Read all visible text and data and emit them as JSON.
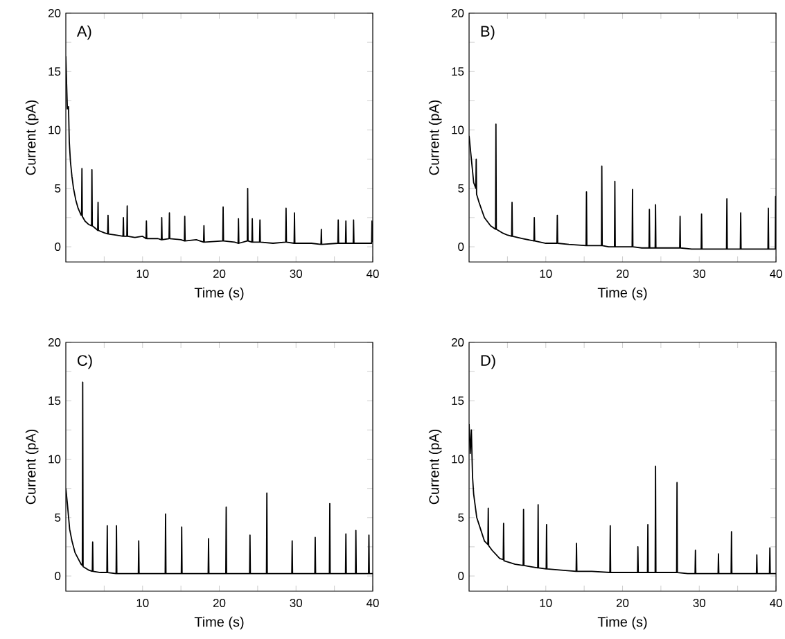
{
  "chart_data": [
    {
      "type": "line",
      "annotations": [
        "A)"
      ],
      "xlabel": "Time (s)",
      "ylabel": "Current (pA)",
      "color": "#000000",
      "xlim": [
        0,
        40
      ],
      "ylim": [
        -1.3,
        20
      ],
      "xticks": [
        {
          "value": 5,
          "label": null
        },
        10,
        {
          "value": 15,
          "label": null
        },
        20,
        {
          "value": 25,
          "label": null
        },
        30,
        {
          "value": 35,
          "label": null
        },
        40
      ],
      "yticks": [
        0,
        {
          "value": 2.5,
          "label": null
        },
        5,
        {
          "value": 7.5,
          "label": null
        },
        10,
        {
          "value": 12.5,
          "label": null
        },
        15,
        {
          "value": 17.5,
          "label": null
        },
        20
      ],
      "x": [
        0,
        0.1,
        0.2,
        0.35,
        0.45,
        0.6,
        0.8,
        1.0,
        1.3,
        1.6,
        2.0,
        2.05,
        2.1,
        2.15,
        2.5,
        3.0,
        3.35,
        3.4,
        3.45,
        4.0,
        4.15,
        4.2,
        4.25,
        5,
        5.45,
        5.5,
        5.55,
        6.5,
        7.45,
        7.5,
        7.55,
        7.95,
        8.0,
        8.05,
        9,
        10,
        10.45,
        10.5,
        10.55,
        12,
        12.45,
        12.5,
        12.55,
        13.45,
        13.5,
        13.55,
        15,
        15.45,
        15.5,
        15.55,
        17,
        17.95,
        18,
        18.05,
        20.45,
        20.5,
        20.55,
        22,
        22.45,
        22.5,
        22.55,
        23.65,
        23.7,
        23.75,
        24.25,
        24.3,
        24.35,
        25.25,
        25.3,
        25.35,
        27,
        28.65,
        28.7,
        28.75,
        29.75,
        29.8,
        29.85,
        32,
        33.25,
        33.3,
        33.35,
        35.45,
        35.5,
        35.55,
        36.45,
        36.5,
        36.55,
        37.45,
        37.5,
        37.55,
        39,
        39.85,
        39.9,
        40
      ],
      "values": [
        16.3,
        14,
        11.8,
        12,
        9,
        7.3,
        6,
        5,
        4,
        3.3,
        2.7,
        2.7,
        6.7,
        2.6,
        2.2,
        1.9,
        1.8,
        6.6,
        1.8,
        1.5,
        1.4,
        3.8,
        1.4,
        1.2,
        1.1,
        2.7,
        1.1,
        1.0,
        0.9,
        2.5,
        0.9,
        0.9,
        3.5,
        0.9,
        0.8,
        0.9,
        0.7,
        2.2,
        0.7,
        0.7,
        0.6,
        2.5,
        0.6,
        0.7,
        2.9,
        0.7,
        0.6,
        0.5,
        2.6,
        0.5,
        0.6,
        0.4,
        1.8,
        0.4,
        0.5,
        3.4,
        0.5,
        0.4,
        0.3,
        2.4,
        0.3,
        0.5,
        5.0,
        0.5,
        0.4,
        2.4,
        0.4,
        0.4,
        2.3,
        0.4,
        0.3,
        0.4,
        3.3,
        0.4,
        0.3,
        2.9,
        0.3,
        0.3,
        0.2,
        1.5,
        0.2,
        0.3,
        2.3,
        0.3,
        0.3,
        2.2,
        0.3,
        0.3,
        2.3,
        0.3,
        0.3,
        0.3,
        2.2,
        0.4
      ]
    },
    {
      "type": "line",
      "annotations": [
        "B)"
      ],
      "xlabel": "Time (s)",
      "ylabel": "Current (pA)",
      "color": "#000000",
      "xlim": [
        0,
        40
      ],
      "ylim": [
        -1.3,
        20
      ],
      "xticks": [
        {
          "value": 5,
          "label": null
        },
        10,
        {
          "value": 15,
          "label": null
        },
        20,
        {
          "value": 25,
          "label": null
        },
        30,
        {
          "value": 35,
          "label": null
        },
        40
      ],
      "yticks": [
        0,
        {
          "value": 2.5,
          "label": null
        },
        5,
        {
          "value": 7.5,
          "label": null
        },
        10,
        {
          "value": 12.5,
          "label": null
        },
        15,
        {
          "value": 17.5,
          "label": null
        },
        20
      ],
      "x": [
        0,
        0.3,
        0.6,
        0.88,
        0.93,
        0.98,
        1.3,
        2.0,
        2.8,
        3.45,
        3.5,
        3.55,
        4.3,
        5.0,
        5.55,
        5.6,
        5.65,
        7,
        8.45,
        8.5,
        8.55,
        10,
        11.45,
        11.5,
        11.55,
        13,
        15.25,
        15.3,
        15.35,
        16.5,
        17.25,
        17.3,
        17.35,
        18.2,
        18.95,
        19.0,
        19.05,
        20,
        21.25,
        21.3,
        21.35,
        22.5,
        23.45,
        23.5,
        23.55,
        24.25,
        24.3,
        24.35,
        26,
        27.45,
        27.5,
        27.55,
        29,
        30.25,
        30.3,
        30.35,
        32,
        33.55,
        33.6,
        33.65,
        34.5,
        35.35,
        35.4,
        35.45,
        37,
        38.95,
        39.0,
        39.05,
        39.9,
        39.95,
        40
      ],
      "values": [
        9.5,
        7.5,
        5.5,
        5.0,
        7.5,
        4.5,
        3.8,
        2.5,
        1.8,
        1.5,
        10.5,
        1.5,
        1.2,
        1.0,
        0.9,
        3.8,
        0.9,
        0.7,
        0.5,
        2.5,
        0.5,
        0.3,
        0.3,
        2.7,
        0.3,
        0.2,
        0.1,
        4.7,
        0.1,
        0.1,
        0.1,
        6.9,
        0.1,
        0.0,
        0.0,
        5.6,
        0.0,
        0.0,
        0.0,
        4.9,
        0.0,
        -0.1,
        -0.1,
        3.2,
        -0.1,
        -0.1,
        3.6,
        -0.1,
        -0.1,
        -0.1,
        2.6,
        -0.1,
        -0.2,
        -0.2,
        2.8,
        -0.2,
        -0.2,
        -0.2,
        4.1,
        -0.2,
        -0.2,
        -0.2,
        2.9,
        -0.2,
        -0.2,
        -0.2,
        3.3,
        -0.2,
        -0.2,
        4.3,
        -0.2
      ]
    },
    {
      "type": "line",
      "annotations": [
        "C)"
      ],
      "xlabel": "Time (s)",
      "ylabel": "Current (pA)",
      "color": "#000000",
      "xlim": [
        0,
        40
      ],
      "ylim": [
        -1.3,
        20
      ],
      "xticks": [
        {
          "value": 5,
          "label": null
        },
        10,
        {
          "value": 15,
          "label": null
        },
        20,
        {
          "value": 25,
          "label": null
        },
        30,
        {
          "value": 35,
          "label": null
        },
        40
      ],
      "yticks": [
        0,
        {
          "value": 2.5,
          "label": null
        },
        5,
        {
          "value": 7.5,
          "label": null
        },
        10,
        {
          "value": 12.5,
          "label": null
        },
        15,
        {
          "value": 17.5,
          "label": null
        },
        20
      ],
      "x": [
        0,
        0.2,
        0.5,
        0.8,
        1.2,
        1.6,
        2.0,
        2.15,
        2.2,
        2.25,
        3.0,
        3.45,
        3.5,
        3.55,
        4.5,
        5.35,
        5.4,
        5.45,
        6.55,
        6.6,
        6.65,
        8,
        9.45,
        9.5,
        9.55,
        11,
        12.95,
        13.0,
        13.05,
        14,
        15.05,
        15.1,
        15.15,
        17,
        18.55,
        18.6,
        18.65,
        20.85,
        20.9,
        20.95,
        22.5,
        23.95,
        24,
        24.05,
        25.5,
        26.15,
        26.2,
        26.25,
        28,
        29.45,
        29.5,
        29.55,
        31,
        32.45,
        32.5,
        32.55,
        34.35,
        34.4,
        34.45,
        35.5,
        36.45,
        36.5,
        36.55,
        37.75,
        37.8,
        37.85,
        39,
        39.45,
        39.5,
        39.55,
        40
      ],
      "values": [
        7.5,
        6.2,
        4.0,
        3.0,
        2.0,
        1.5,
        1.0,
        0.9,
        16.6,
        0.8,
        0.5,
        0.4,
        2.9,
        0.4,
        0.3,
        0.3,
        4.3,
        0.3,
        0.2,
        4.3,
        0.2,
        0.2,
        0.2,
        3.0,
        0.2,
        0.2,
        0.2,
        5.3,
        0.2,
        0.2,
        0.2,
        4.2,
        0.2,
        0.2,
        0.2,
        3.2,
        0.2,
        0.2,
        5.9,
        0.2,
        0.2,
        0.2,
        3.5,
        0.2,
        0.2,
        0.2,
        7.1,
        0.2,
        0.2,
        0.2,
        3.0,
        0.2,
        0.2,
        0.2,
        3.3,
        0.2,
        0.2,
        6.2,
        0.2,
        0.2,
        0.2,
        3.6,
        0.2,
        0.2,
        3.9,
        0.2,
        0.2,
        0.2,
        3.5,
        0.2,
        0.2
      ]
    },
    {
      "type": "line",
      "annotations": [
        "D)"
      ],
      "xlabel": "Time (s)",
      "ylabel": "Current (pA)",
      "color": "#000000",
      "xlim": [
        0,
        40
      ],
      "ylim": [
        -1.3,
        20
      ],
      "xticks": [
        {
          "value": 5,
          "label": null
        },
        10,
        {
          "value": 15,
          "label": null
        },
        20,
        {
          "value": 25,
          "label": null
        },
        30,
        {
          "value": 35,
          "label": null
        },
        40
      ],
      "yticks": [
        0,
        {
          "value": 2.5,
          "label": null
        },
        5,
        {
          "value": 7.5,
          "label": null
        },
        10,
        {
          "value": 12.5,
          "label": null
        },
        15,
        {
          "value": 17.5,
          "label": null
        },
        20
      ],
      "x": [
        0,
        0.15,
        0.3,
        0.45,
        0.6,
        0.8,
        1.0,
        1.5,
        2.0,
        2.45,
        2.5,
        2.55,
        3.0,
        4.0,
        4.45,
        4.5,
        4.55,
        6.0,
        7.05,
        7.1,
        7.15,
        8.0,
        8.95,
        9.0,
        9.05,
        10.05,
        10.1,
        10.15,
        12,
        13.95,
        14,
        14.05,
        16,
        18.35,
        18.4,
        18.45,
        20,
        21.95,
        22,
        22.05,
        23.25,
        23.3,
        23.35,
        24.25,
        24.3,
        24.35,
        25.5,
        27.05,
        27.1,
        27.15,
        28.5,
        29.45,
        29.5,
        29.55,
        31,
        32.45,
        32.5,
        32.55,
        34.15,
        34.2,
        34.25,
        36,
        37.45,
        37.5,
        37.55,
        39.15,
        39.2,
        39.25,
        40
      ],
      "values": [
        13,
        10.5,
        12.5,
        8.5,
        7,
        6,
        5,
        4,
        3,
        2.7,
        5.8,
        2.6,
        2.2,
        1.5,
        1.4,
        4.5,
        1.3,
        1.0,
        0.9,
        5.7,
        0.9,
        0.8,
        0.7,
        6.1,
        0.7,
        0.6,
        4.4,
        0.6,
        0.5,
        0.4,
        2.8,
        0.4,
        0.4,
        0.3,
        4.3,
        0.3,
        0.3,
        0.3,
        2.5,
        0.3,
        0.3,
        4.4,
        0.3,
        0.3,
        9.4,
        0.3,
        0.3,
        0.3,
        8.0,
        0.3,
        0.2,
        0.2,
        2.2,
        0.2,
        0.2,
        0.2,
        1.9,
        0.2,
        0.2,
        3.8,
        0.2,
        0.2,
        0.2,
        1.8,
        0.2,
        0.2,
        2.4,
        0.2,
        0.2
      ]
    }
  ]
}
